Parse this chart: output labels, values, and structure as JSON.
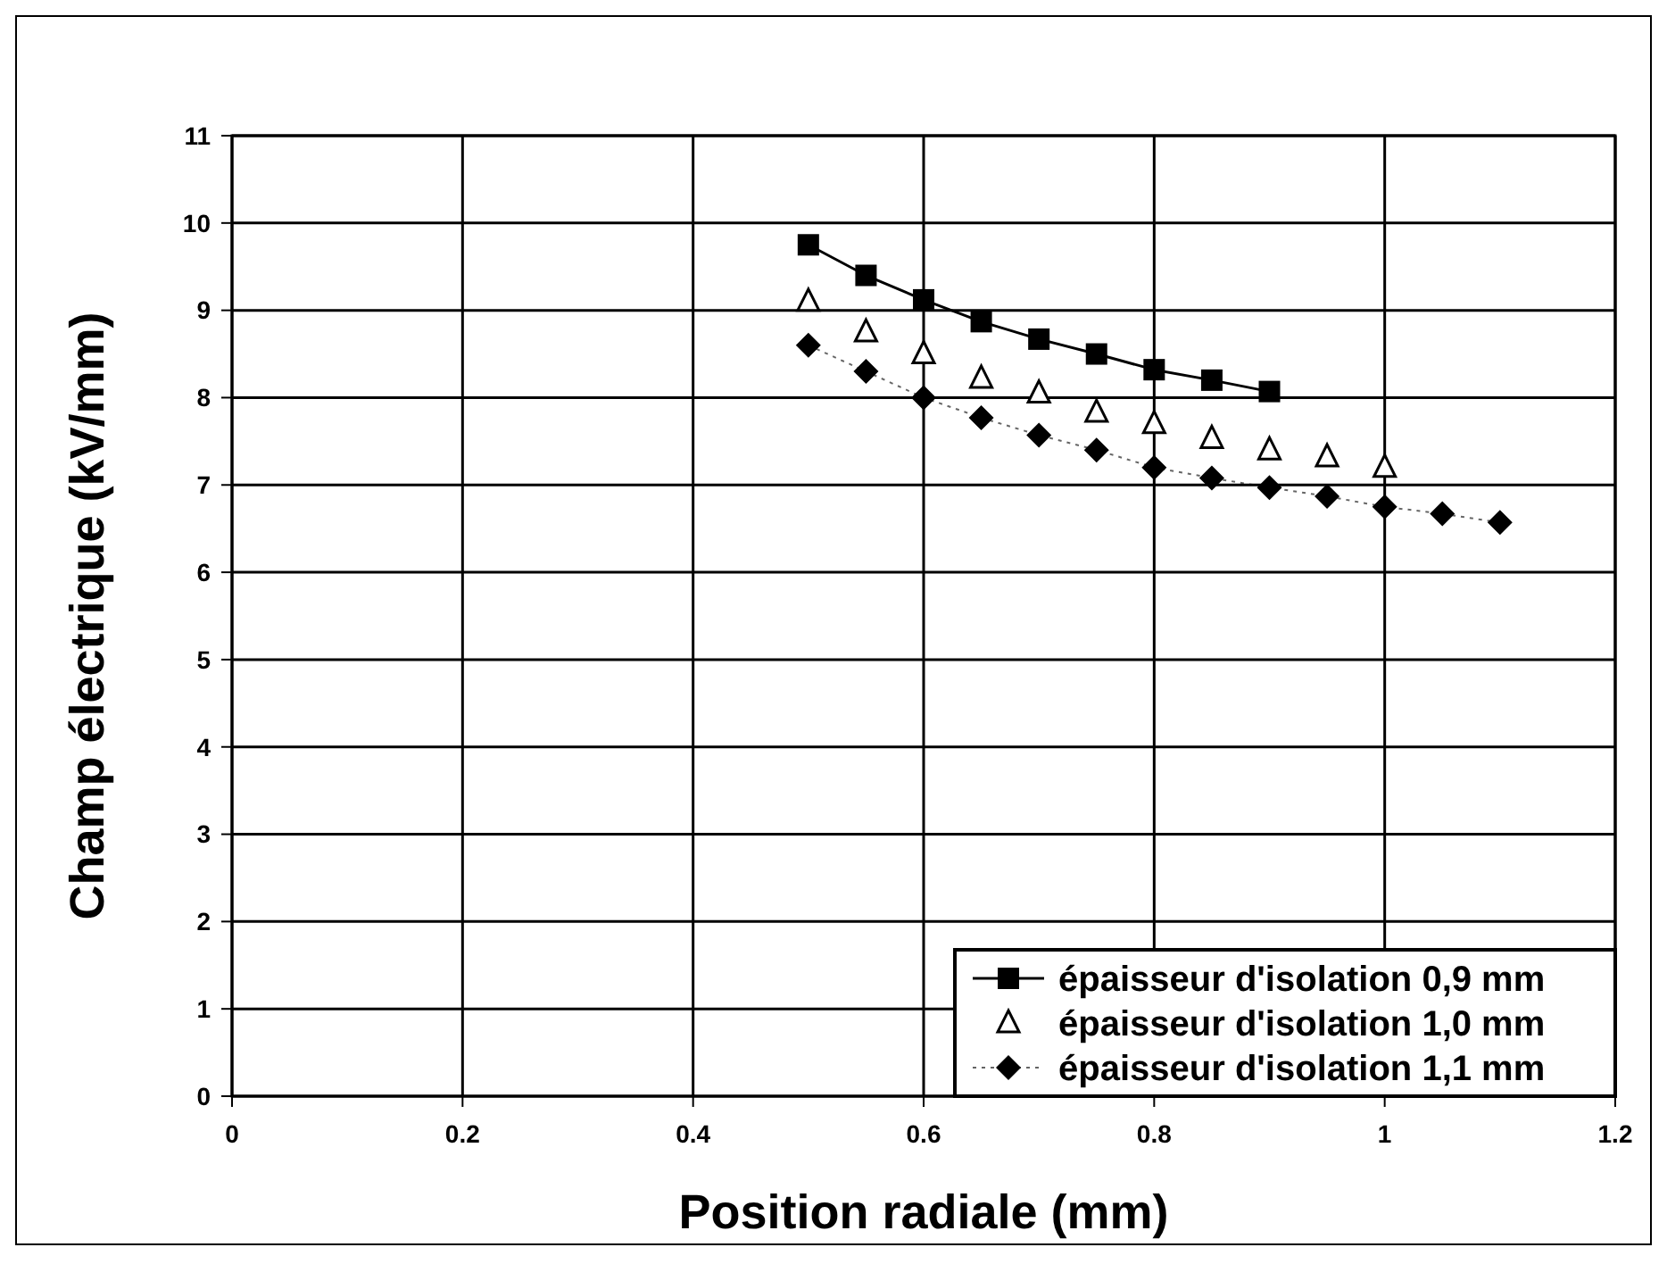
{
  "chart_data": {
    "type": "line",
    "xlabel": "Position radiale (mm)",
    "ylabel": "Champ électrique (kV/mm)",
    "xlim": [
      0,
      1.2
    ],
    "ylim": [
      0,
      11
    ],
    "xticks": [
      0,
      0.2,
      0.4,
      0.6,
      0.8,
      1,
      1.2
    ],
    "yticks": [
      0,
      1,
      2,
      3,
      4,
      5,
      6,
      7,
      8,
      9,
      10,
      11
    ],
    "grid": true,
    "legend": "bottom right",
    "series": [
      {
        "name": "épaisseur d'isolation 0,9 mm",
        "color": "#000000",
        "marker": "square",
        "line_style": "solid",
        "x": [
          0.5,
          0.55,
          0.6,
          0.65,
          0.7,
          0.75,
          0.8,
          0.85,
          0.9
        ],
        "values": [
          9.75,
          9.4,
          9.12,
          8.87,
          8.67,
          8.5,
          8.32,
          8.2,
          8.07
        ]
      },
      {
        "name": "épaisseur d'isolation 1,0 mm",
        "type": "scatter",
        "color": "#000000",
        "marker": "triangle",
        "x": [
          0.5,
          0.55,
          0.6,
          0.65,
          0.7,
          0.75,
          0.8,
          0.85,
          0.9,
          0.95,
          1.0
        ],
        "values": [
          9.1,
          8.75,
          8.5,
          8.22,
          8.05,
          7.83,
          7.7,
          7.53,
          7.4,
          7.32,
          7.2
        ]
      },
      {
        "name": "épaisseur d'isolation 1,1 mm",
        "color": "#000000",
        "marker": "diamond",
        "line_style": "dotted",
        "x": [
          0.5,
          0.55,
          0.6,
          0.65,
          0.7,
          0.75,
          0.8,
          0.85,
          0.9,
          0.95,
          1.0,
          1.05,
          1.1
        ],
        "values": [
          8.6,
          8.3,
          8.0,
          7.77,
          7.57,
          7.4,
          7.2,
          7.08,
          6.97,
          6.87,
          6.75,
          6.67,
          6.57
        ]
      }
    ]
  }
}
